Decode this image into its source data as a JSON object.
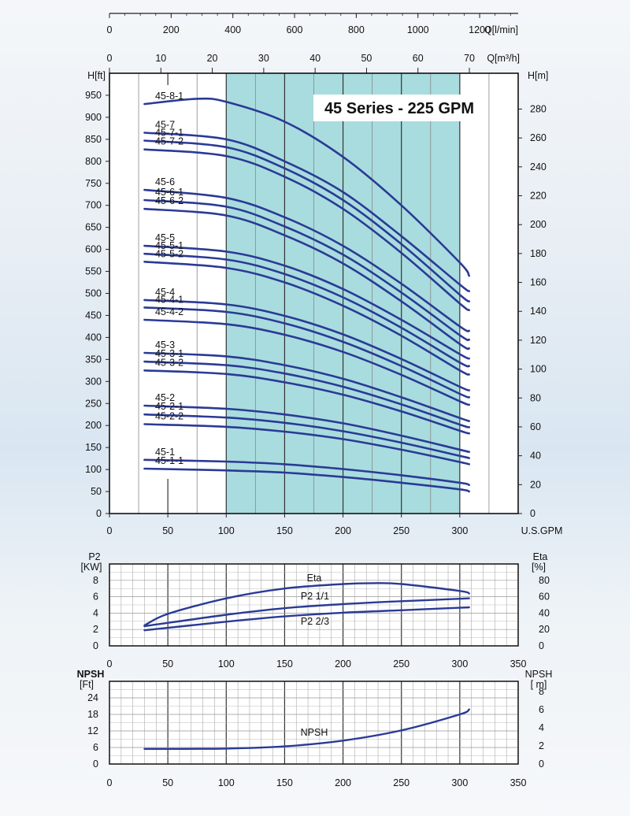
{
  "chart_data": [
    {
      "type": "line",
      "title": "45 Series - 225 GPM",
      "top_axis_lmin": {
        "label": "Q[l/min]",
        "ticks": [
          0,
          200,
          400,
          600,
          800,
          1000,
          1200
        ]
      },
      "top_axis_m3h": {
        "label": "Q[m³/h]",
        "ticks": [
          0,
          10,
          20,
          30,
          40,
          50,
          60,
          70
        ]
      },
      "xlabel": "U.S.GPM",
      "xticks": [
        0,
        50,
        100,
        150,
        200,
        250,
        300
      ],
      "xlim": [
        0,
        350
      ],
      "ylabel_left": "H[ft]",
      "yticks_left": [
        0,
        50,
        100,
        150,
        200,
        250,
        300,
        350,
        400,
        450,
        500,
        550,
        600,
        650,
        700,
        750,
        800,
        850,
        900,
        950
      ],
      "ylim_left": [
        0,
        1000
      ],
      "ylabel_right": "H[m]",
      "yticks_right": [
        0,
        20,
        40,
        60,
        80,
        100,
        120,
        140,
        160,
        180,
        200,
        220,
        240,
        260,
        280
      ],
      "recommended_range_gpm": [
        100,
        300
      ],
      "series": [
        {
          "name": "45-8-1",
          "x": [
            30,
            75,
            100,
            150,
            200,
            250,
            300,
            308
          ],
          "y": [
            930,
            942,
            935,
            890,
            810,
            700,
            570,
            540
          ]
        },
        {
          "name": "45-7",
          "x": [
            30,
            100,
            150,
            200,
            250,
            300,
            308
          ],
          "y": [
            865,
            850,
            800,
            730,
            630,
            520,
            505
          ]
        },
        {
          "name": "45-7-1",
          "x": [
            30,
            100,
            150,
            200,
            250,
            300,
            308
          ],
          "y": [
            847,
            832,
            784,
            712,
            612,
            497,
            482
          ]
        },
        {
          "name": "45-7-2",
          "x": [
            30,
            100,
            150,
            200,
            250,
            300,
            308
          ],
          "y": [
            827,
            812,
            765,
            692,
            592,
            477,
            462
          ]
        },
        {
          "name": "45-6",
          "x": [
            30,
            100,
            150,
            200,
            250,
            300,
            308
          ],
          "y": [
            735,
            717,
            673,
            608,
            522,
            425,
            415
          ]
        },
        {
          "name": "45-6-1",
          "x": [
            30,
            100,
            150,
            200,
            250,
            300,
            308
          ],
          "y": [
            712,
            697,
            652,
            588,
            502,
            405,
            395
          ]
        },
        {
          "name": "45-6-2",
          "x": [
            30,
            100,
            150,
            200,
            250,
            300,
            308
          ],
          "y": [
            692,
            677,
            632,
            568,
            482,
            385,
            375
          ]
        },
        {
          "name": "45-5",
          "x": [
            30,
            100,
            150,
            200,
            250,
            300,
            308
          ],
          "y": [
            608,
            595,
            563,
            510,
            440,
            362,
            352
          ]
        },
        {
          "name": "45-5-1",
          "x": [
            30,
            100,
            150,
            200,
            250,
            300,
            308
          ],
          "y": [
            590,
            577,
            544,
            491,
            422,
            343,
            335
          ]
        },
        {
          "name": "45-5-2",
          "x": [
            30,
            100,
            150,
            200,
            250,
            300,
            308
          ],
          "y": [
            572,
            558,
            525,
            472,
            404,
            325,
            316
          ]
        },
        {
          "name": "45-4",
          "x": [
            30,
            100,
            150,
            200,
            250,
            300,
            308
          ],
          "y": [
            485,
            475,
            449,
            407,
            351,
            288,
            280
          ]
        },
        {
          "name": "45-4-1",
          "x": [
            30,
            100,
            150,
            200,
            250,
            300,
            308
          ],
          "y": [
            468,
            458,
            432,
            390,
            335,
            272,
            264
          ]
        },
        {
          "name": "45-4-2",
          "x": [
            30,
            100,
            150,
            200,
            250,
            300,
            308
          ],
          "y": [
            440,
            430,
            406,
            367,
            315,
            255,
            247
          ]
        },
        {
          "name": "45-3",
          "x": [
            30,
            100,
            150,
            200,
            250,
            300,
            308
          ],
          "y": [
            365,
            357,
            337,
            306,
            264,
            217,
            210
          ]
        },
        {
          "name": "45-3-1",
          "x": [
            30,
            100,
            150,
            200,
            250,
            300,
            308
          ],
          "y": [
            345,
            337,
            318,
            288,
            248,
            202,
            196
          ]
        },
        {
          "name": "45-3-2",
          "x": [
            30,
            100,
            150,
            200,
            250,
            300,
            308
          ],
          "y": [
            325,
            317,
            298,
            270,
            232,
            188,
            182
          ]
        },
        {
          "name": "45-2",
          "x": [
            30,
            100,
            150,
            200,
            250,
            300,
            308
          ],
          "y": [
            245,
            238,
            225,
            205,
            177,
            145,
            140
          ]
        },
        {
          "name": "45-2-1",
          "x": [
            30,
            100,
            150,
            200,
            250,
            300,
            308
          ],
          "y": [
            225,
            218,
            206,
            187,
            161,
            131,
            126
          ]
        },
        {
          "name": "45-2-2",
          "x": [
            30,
            100,
            150,
            200,
            250,
            300,
            308
          ],
          "y": [
            203,
            197,
            186,
            169,
            145,
            117,
            112
          ]
        },
        {
          "name": "45-1",
          "x": [
            30,
            100,
            150,
            200,
            250,
            300,
            308
          ],
          "y": [
            122,
            118,
            112,
            101,
            87,
            70,
            65
          ]
        },
        {
          "name": "45-1-1",
          "x": [
            30,
            100,
            150,
            200,
            250,
            300,
            308
          ],
          "y": [
            102,
            98,
            93,
            83,
            70,
            55,
            50
          ]
        }
      ]
    },
    {
      "type": "line",
      "ylabel_left": "P2 [KW]",
      "yticks_left": [
        0,
        2,
        4,
        6,
        8
      ],
      "ylim_left": [
        0,
        10
      ],
      "ylabel_right": "Eta [%]",
      "yticks_right": [
        0,
        20,
        40,
        60,
        80
      ],
      "xticks": [
        0,
        50,
        100,
        150,
        200,
        250,
        300,
        350
      ],
      "xlim": [
        0,
        350
      ],
      "series": [
        {
          "name": "Eta",
          "axis": "right",
          "x": [
            30,
            50,
            100,
            150,
            200,
            225,
            250,
            300,
            308
          ],
          "y": [
            25,
            39,
            58,
            70,
            75.5,
            76.5,
            75.5,
            67,
            64
          ]
        },
        {
          "name": "P2 1/1",
          "axis": "left",
          "x": [
            30,
            100,
            150,
            200,
            250,
            300,
            308
          ],
          "y": [
            2.4,
            3.8,
            4.6,
            5.1,
            5.45,
            5.75,
            5.8
          ]
        },
        {
          "name": "P2 2/3",
          "axis": "left",
          "x": [
            30,
            100,
            150,
            200,
            250,
            300,
            308
          ],
          "y": [
            1.9,
            2.95,
            3.6,
            4.05,
            4.35,
            4.65,
            4.7
          ]
        }
      ]
    },
    {
      "type": "line",
      "ylabel_left": "NPSH [Ft]",
      "yticks_left": [
        0,
        6,
        12,
        18,
        24
      ],
      "ylim_left": [
        0,
        30
      ],
      "ylabel_right": "NPSH [ m]",
      "yticks_right": [
        0,
        2,
        4,
        6,
        8
      ],
      "xticks": [
        0,
        50,
        100,
        150,
        200,
        250,
        300,
        350
      ],
      "xlim": [
        0,
        350
      ],
      "series": [
        {
          "name": "NPSH",
          "x": [
            30,
            50,
            100,
            150,
            200,
            250,
            300,
            308
          ],
          "y": [
            5.5,
            5.5,
            5.6,
            6.4,
            8.5,
            12.2,
            18.0,
            19.8
          ]
        }
      ]
    }
  ]
}
